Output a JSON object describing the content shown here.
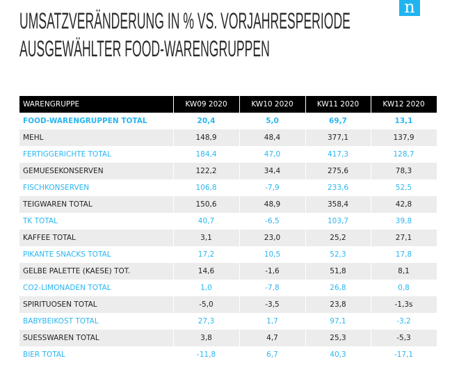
{
  "title_lines": [
    "UMSATZVERÄNDERUNG IN % VS. VORJAHRESPERIODE",
    "AUSGEWÄHLTER FOOD-WARENGRUPPEN"
  ],
  "logo": "n",
  "colors": {
    "accent": "#29b6f0",
    "header_bg": "#000000",
    "stripe": "#ececec"
  },
  "table": {
    "headers": [
      "WARENGRUPPE",
      "KW09 2020",
      "KW10 2020",
      "KW11 2020",
      "KW12 2020"
    ],
    "rows": [
      {
        "cells": [
          "FOOD-WARENGRUPPEN TOTAL",
          "20,4",
          "5,0",
          "69,7",
          "13,1"
        ]
      },
      {
        "cells": [
          "MEHL",
          "148,9",
          "48,4",
          "377,1",
          "137,9"
        ]
      },
      {
        "cells": [
          "FERTIGGERICHTE TOTAL",
          "184,4",
          "47,0",
          "417,3",
          "128,7"
        ]
      },
      {
        "cells": [
          "GEMUESEKONSERVEN",
          "122,2",
          "34,4",
          "275,6",
          "78,3"
        ]
      },
      {
        "cells": [
          "FISCHKONSERVEN",
          "106,8",
          "-7,9",
          "233,6",
          "52,5"
        ]
      },
      {
        "cells": [
          "TEIGWAREN TOTAL",
          "150,6",
          "48,9",
          "358,4",
          "42,8"
        ]
      },
      {
        "cells": [
          "TK TOTAL",
          "40,7",
          "-6,5",
          "103,7",
          "39,8"
        ]
      },
      {
        "cells": [
          "KAFFEE TOTAL",
          "3,1",
          "23,0",
          "25,2",
          "27,1"
        ]
      },
      {
        "cells": [
          "PIKANTE SNACKS TOTAL",
          "17,2",
          "10,5",
          "52,3",
          "17,8"
        ]
      },
      {
        "cells": [
          "GELBE PALETTE (KAESE) TOT.",
          "14,6",
          "-1,6",
          "51,8",
          "8,1"
        ]
      },
      {
        "cells": [
          "CO2-LIMONADEN TOTAL",
          "1,0",
          "-7,8",
          "26,8",
          "0,8"
        ]
      },
      {
        "cells": [
          "SPIRITUOSEN TOTAL",
          "-5,0",
          "-3,5",
          "23,8",
          "-1,3s"
        ]
      },
      {
        "cells": [
          "BABYBEIKOST TOTAL",
          "27,3",
          "1,7",
          "97,1",
          "-3,2"
        ]
      },
      {
        "cells": [
          "SUESSWAREN TOTAL",
          "3,8",
          "4,7",
          "25,3",
          "-5,3"
        ]
      },
      {
        "cells": [
          "BIER TOTAL",
          "-11,8",
          "6,7",
          "40,3",
          "-17,1"
        ]
      }
    ]
  }
}
